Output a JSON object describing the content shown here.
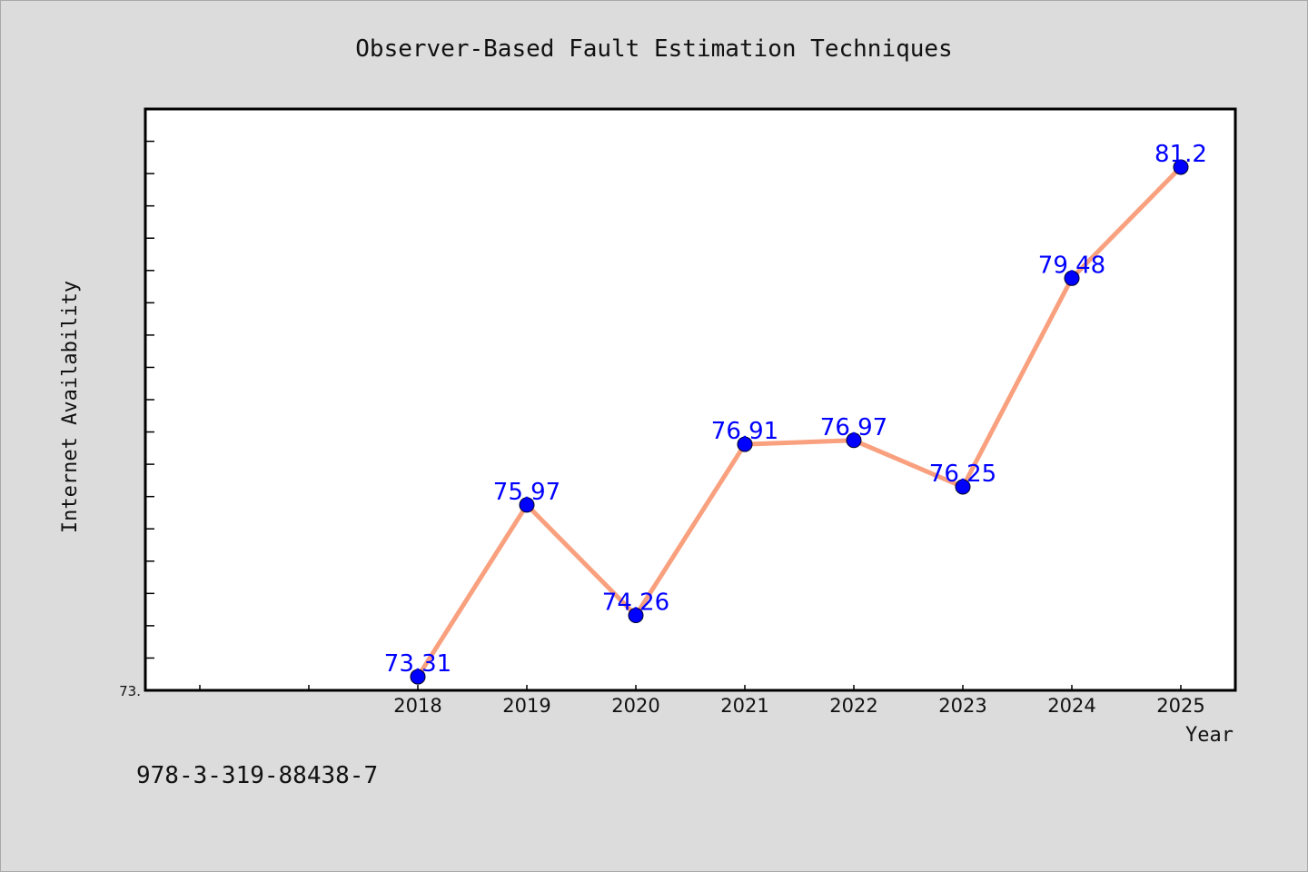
{
  "chart_data": {
    "type": "line",
    "title": "Observer-Based Fault Estimation Techniques",
    "xlabel": "Year",
    "ylabel": "Internet Availability",
    "categories": [
      "2018",
      "2019",
      "2020",
      "2021",
      "2022",
      "2023",
      "2024",
      "2025"
    ],
    "series": [
      {
        "values": [
          73.31,
          75.97,
          74.26,
          76.91,
          76.97,
          76.25,
          79.48,
          81.2
        ],
        "data_labels": [
          "73.31",
          "75.97",
          "74.26",
          "76.91",
          "76.97",
          "76.25",
          "79.48",
          "81.2"
        ],
        "line_color": "#f9a07e",
        "marker_color": "#0000ff"
      }
    ],
    "ylim": [
      73.1,
      82.1
    ],
    "ytick_label": "73.",
    "grid": false,
    "legend": "none"
  },
  "footer": {
    "isbn": "978-3-319-88438-7"
  },
  "colors": {
    "background": "#dcdcdc",
    "plot_background": "#ffffff",
    "axis": "#000000"
  }
}
